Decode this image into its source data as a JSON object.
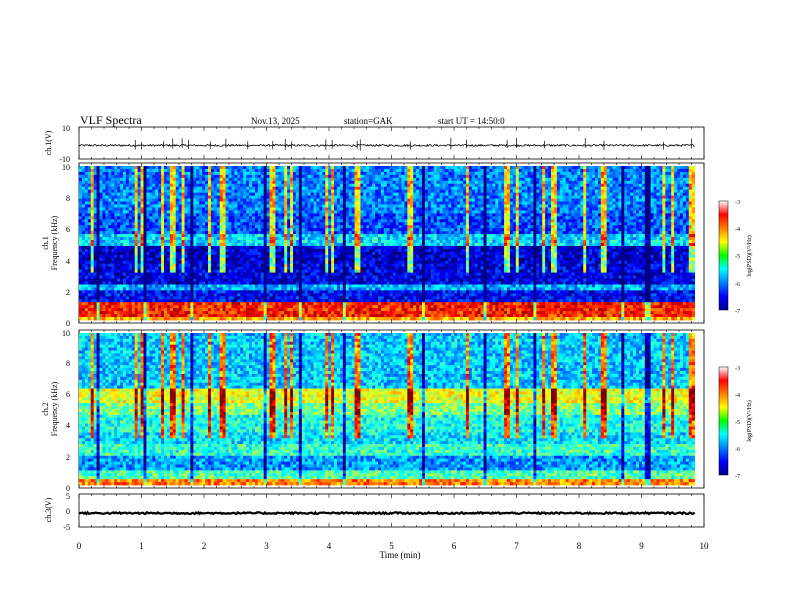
{
  "header": {
    "title": "VLF  Spectra",
    "date": "Nov.13, 2025",
    "station": "station=GAK",
    "start_ut": "start  UT  =   14:50:0"
  },
  "chart_data": [
    {
      "type": "line",
      "name": "ch1-waveform",
      "ylabel": "ch.1(V)",
      "ylim": [
        -10,
        10
      ],
      "yticks": [
        "10",
        "-10"
      ],
      "xlim": [
        0,
        10
      ],
      "baseline": -1.5,
      "noise_amplitude": 0.6,
      "spikes_min": [
        0.9,
        1.0,
        1.35,
        1.5,
        1.65,
        1.75,
        2.1,
        2.35,
        2.7,
        3.1,
        3.3,
        3.4,
        3.95,
        4.05,
        4.45,
        4.5,
        5.3,
        5.95,
        6.2,
        6.85,
        7.0,
        7.45,
        8.1,
        8.4,
        9.35,
        9.8
      ]
    },
    {
      "type": "heatmap",
      "name": "ch1-spectrogram",
      "ylabel_top": "ch.1",
      "ylabel": "Frequency  (kHz)",
      "ylim": [
        0,
        10
      ],
      "yticks": [
        "0",
        "2",
        "4",
        "6",
        "8",
        "10"
      ],
      "xlim": [
        0,
        9.85
      ],
      "colorbar": {
        "label": "log(PSD)(V²/Hz)",
        "range": [
          -7,
          -3
        ],
        "ticks": [
          "-3",
          "-4",
          "-5",
          "-6",
          "-7"
        ]
      },
      "bands": [
        {
          "f": [
            0,
            0.2
          ],
          "level": -4.2
        },
        {
          "f": [
            0.2,
            1.2
          ],
          "level": -3.6
        },
        {
          "f": [
            1.2,
            2.0
          ],
          "level": -6.5
        },
        {
          "f": [
            2.0,
            2.3
          ],
          "level": -5.8
        },
        {
          "f": [
            2.3,
            3.6
          ],
          "level": -6.6
        },
        {
          "f": [
            3.6,
            4.8
          ],
          "level": -6.7
        },
        {
          "f": [
            4.8,
            5.6
          ],
          "level": -5.6
        },
        {
          "f": [
            5.6,
            7.0
          ],
          "level": -6.2
        },
        {
          "f": [
            7.0,
            10.0
          ],
          "level": -6.0
        }
      ],
      "bright_columns_min": [
        0.2,
        0.9,
        1.0,
        1.35,
        1.5,
        1.65,
        2.1,
        2.3,
        3.1,
        3.3,
        3.4,
        3.95,
        4.05,
        4.45,
        5.3,
        6.2,
        6.85,
        7.0,
        7.45,
        7.6,
        8.1,
        8.4,
        9.35,
        9.5,
        9.8
      ],
      "dark_columns_min": [
        0.3,
        1.05,
        1.8,
        3.0,
        3.55,
        4.25,
        5.5,
        6.5,
        7.3,
        8.7,
        9.1
      ]
    },
    {
      "type": "heatmap",
      "name": "ch2-spectrogram",
      "ylabel_top": "ch.2",
      "ylabel": "Frequency  (kHz)",
      "ylim": [
        0,
        10
      ],
      "yticks": [
        "0",
        "2",
        "4",
        "6",
        "8",
        "10"
      ],
      "xlim": [
        0,
        9.85
      ],
      "colorbar": {
        "label": "log(PSD)(V²/Hz)",
        "range": [
          -7,
          -3
        ],
        "ticks": [
          "-3",
          "-4",
          "-5",
          "-6",
          "-7"
        ]
      },
      "bands": [
        {
          "f": [
            0,
            0.3
          ],
          "level": -4.0
        },
        {
          "f": [
            0.3,
            1.0
          ],
          "level": -5.2
        },
        {
          "f": [
            1.0,
            2.0
          ],
          "level": -5.9
        },
        {
          "f": [
            2.0,
            2.6
          ],
          "level": -5.3
        },
        {
          "f": [
            2.6,
            3.5
          ],
          "level": -5.6
        },
        {
          "f": [
            3.5,
            4.6
          ],
          "level": -5.4
        },
        {
          "f": [
            4.6,
            5.4
          ],
          "level": -5.0
        },
        {
          "f": [
            5.4,
            6.4
          ],
          "level": -4.6
        },
        {
          "f": [
            6.4,
            10.0
          ],
          "level": -5.7
        }
      ],
      "bright_columns_min": [
        0.2,
        0.9,
        1.0,
        1.35,
        1.5,
        1.65,
        2.1,
        2.3,
        3.1,
        3.3,
        3.4,
        3.95,
        4.05,
        4.45,
        5.3,
        6.2,
        6.85,
        7.0,
        7.45,
        7.6,
        8.1,
        8.4,
        9.35,
        9.5,
        9.8
      ],
      "dark_columns_min": [
        0.3,
        1.05,
        1.8,
        3.0,
        3.55,
        4.25,
        5.5,
        6.5,
        7.3,
        8.7,
        9.1
      ]
    },
    {
      "type": "line",
      "name": "ch3-waveform",
      "ylabel": "ch.3(V)",
      "ylim": [
        -5,
        5
      ],
      "yticks": [
        "5",
        "0",
        "-5"
      ],
      "xlim": [
        0,
        10
      ],
      "baseline": -0.8,
      "noise_amplitude": 0.25
    }
  ],
  "x_axis": {
    "xlabel": "Time  (min)",
    "ticks": [
      "0",
      "1",
      "2",
      "3",
      "4",
      "5",
      "6",
      "7",
      "8",
      "9",
      "10"
    ],
    "range": [
      0,
      10
    ]
  }
}
